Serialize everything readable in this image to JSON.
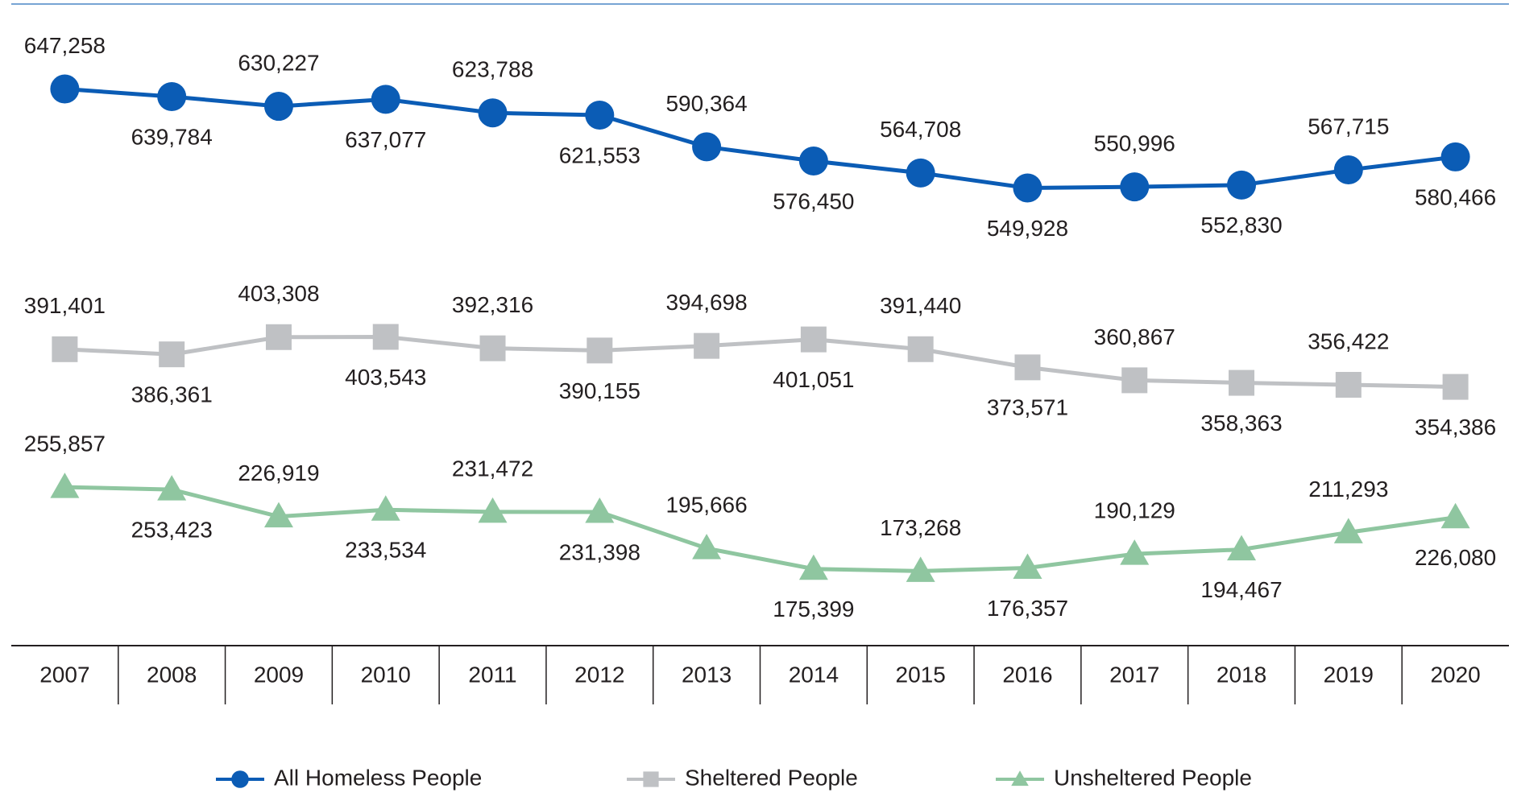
{
  "chart_data": {
    "type": "line",
    "categories": [
      "2007",
      "2008",
      "2009",
      "2010",
      "2011",
      "2012",
      "2013",
      "2014",
      "2015",
      "2016",
      "2017",
      "2018",
      "2019",
      "2020"
    ],
    "series": [
      {
        "name": "All Homeless People",
        "color": "#0b5cb5",
        "marker": "circle",
        "values": [
          647258,
          639784,
          630227,
          637077,
          623788,
          621553,
          590364,
          576450,
          564708,
          549928,
          550996,
          552830,
          567715,
          580466
        ],
        "value_labels": [
          "647,258",
          "639,784",
          "630,227",
          "637,077",
          "623,788",
          "621,553",
          "590,364",
          "576,450",
          "564,708",
          "549,928",
          "550,996",
          "552,830",
          "567,715",
          "580,466"
        ]
      },
      {
        "name": "Sheltered People",
        "color": "#bfc1c4",
        "marker": "square",
        "values": [
          391401,
          386361,
          403308,
          403543,
          392316,
          390155,
          394698,
          401051,
          391440,
          373571,
          360867,
          358363,
          356422,
          354386
        ],
        "value_labels": [
          "391,401",
          "386,361",
          "403,308",
          "403,543",
          "392,316",
          "390,155",
          "394,698",
          "401,051",
          "391,440",
          "373,571",
          "360,867",
          "358,363",
          "356,422",
          "354,386"
        ]
      },
      {
        "name": "Unsheltered People",
        "color": "#8fc6a0",
        "marker": "triangle",
        "values": [
          255857,
          253423,
          226919,
          233534,
          231472,
          231398,
          195666,
          175399,
          173268,
          176357,
          190129,
          194467,
          211293,
          226080
        ],
        "value_labels": [
          "255,857",
          "253,423",
          "226,919",
          "233,534",
          "231,472",
          "231,398",
          "195,666",
          "175,399",
          "173,268",
          "176,357",
          "190,129",
          "194,467",
          "211,293",
          "226,080"
        ]
      }
    ],
    "ylim": [
      100000,
      730000
    ]
  }
}
